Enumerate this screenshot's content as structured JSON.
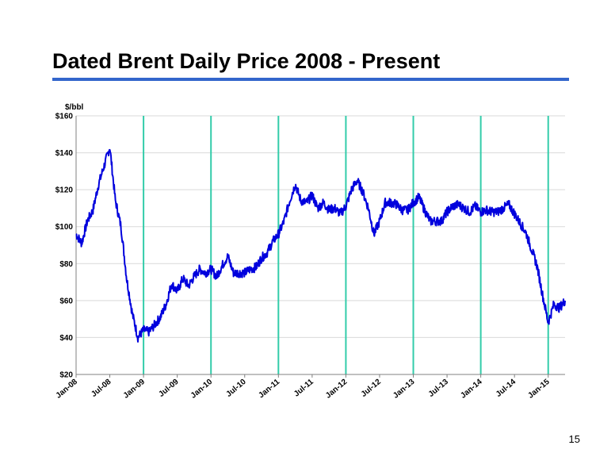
{
  "slide": {
    "title": "Dated Brent Daily Price 2008 - Present",
    "page_number": "15"
  },
  "colors": {
    "title_rule": "#3366cc",
    "price_line": "#0000dd",
    "year_markers": "#33ccaa",
    "gridlines": "#d9d9d9"
  },
  "chart_data": {
    "type": "line",
    "title": "Dated Brent Daily Price 2008 - Present",
    "ylabel": "$/bbl",
    "xlabel": "",
    "ylim": [
      20,
      160
    ],
    "xlim": [
      "2008-01",
      "2015-04"
    ],
    "y_ticks": [
      20,
      40,
      60,
      80,
      100,
      120,
      140,
      160
    ],
    "y_tick_labels": [
      "$20",
      "$40",
      "$60",
      "$80",
      "$100",
      "$120",
      "$140",
      "$160"
    ],
    "x_tick_labels": [
      "Jan-08",
      "Jul-08",
      "Jan-09",
      "Jul-09",
      "Jan-10",
      "Jul-10",
      "Jan-11",
      "Jul-11",
      "Jan-12",
      "Jul-12",
      "Jan-13",
      "Jul-13",
      "Jan-14",
      "Jul-14",
      "Jan-15"
    ],
    "x_tick_dates": [
      "2008-01",
      "2008-07",
      "2009-01",
      "2009-07",
      "2010-01",
      "2010-07",
      "2011-01",
      "2011-07",
      "2012-01",
      "2012-07",
      "2013-01",
      "2013-07",
      "2014-01",
      "2014-07",
      "2015-01"
    ],
    "year_markers": [
      "2009-01",
      "2010-01",
      "2011-01",
      "2012-01",
      "2013-01",
      "2014-01",
      "2015-01"
    ],
    "grid": "horizontal",
    "legend": "none",
    "series": [
      {
        "x": [
          "2008-01",
          "2008-02",
          "2008-03",
          "2008-04",
          "2008-05",
          "2008-06",
          "2008-07",
          "2008-08",
          "2008-09",
          "2008-10",
          "2008-11",
          "2008-12",
          "2009-01",
          "2009-02",
          "2009-03",
          "2009-04",
          "2009-05",
          "2009-06",
          "2009-07",
          "2009-08",
          "2009-09",
          "2009-10",
          "2009-11",
          "2009-12",
          "2010-01",
          "2010-02",
          "2010-03",
          "2010-04",
          "2010-05",
          "2010-06",
          "2010-07",
          "2010-08",
          "2010-09",
          "2010-10",
          "2010-11",
          "2010-12",
          "2011-01",
          "2011-02",
          "2011-03",
          "2011-04",
          "2011-05",
          "2011-06",
          "2011-07",
          "2011-08",
          "2011-09",
          "2011-10",
          "2011-11",
          "2011-12",
          "2012-01",
          "2012-02",
          "2012-03",
          "2012-04",
          "2012-05",
          "2012-06",
          "2012-07",
          "2012-08",
          "2012-09",
          "2012-10",
          "2012-11",
          "2012-12",
          "2013-01",
          "2013-02",
          "2013-03",
          "2013-04",
          "2013-05",
          "2013-06",
          "2013-07",
          "2013-08",
          "2013-09",
          "2013-10",
          "2013-11",
          "2013-12",
          "2014-01",
          "2014-02",
          "2014-03",
          "2014-04",
          "2014-05",
          "2014-06",
          "2014-07",
          "2014-08",
          "2014-09",
          "2014-10",
          "2014-11",
          "2014-12",
          "2015-01",
          "2015-02",
          "2015-03",
          "2015-04"
        ],
        "values": [
          96,
          91,
          103,
          109,
          123,
          133,
          143,
          114,
          100,
          72,
          53,
          40,
          44,
          43,
          47,
          51,
          58,
          69,
          65,
          72,
          68,
          73,
          77,
          75,
          77,
          73,
          79,
          84,
          75,
          75,
          75,
          77,
          78,
          83,
          86,
          92,
          96,
          103,
          114,
          123,
          114,
          113,
          117,
          110,
          113,
          109,
          110,
          107,
          111,
          120,
          125,
          119,
          110,
          96,
          103,
          113,
          113,
          112,
          109,
          109,
          113,
          116,
          109,
          103,
          103,
          103,
          108,
          111,
          112,
          110,
          108,
          111,
          108,
          109,
          108,
          108,
          110,
          112,
          107,
          102,
          97,
          88,
          79,
          63,
          48,
          58,
          56,
          60
        ]
      }
    ]
  }
}
